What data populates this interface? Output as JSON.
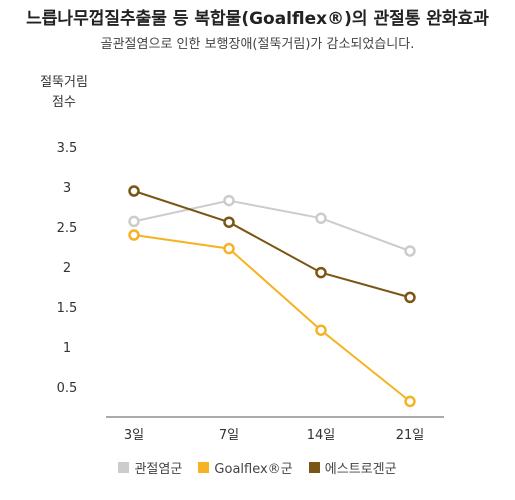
{
  "title": "느릅나무껍질추출물 등 복합물(Goalflex®)의 관절통 완화효과",
  "subtitle": "골관절염으로 인한 보행장애(절뚝거림)가 감소되었습니다.",
  "colors": {
    "관절염군": "#cccccc",
    "Goalflex®군": "#f5b324",
    "에스트로겐군": "#7a5514"
  },
  "chart_data": {
    "type": "line",
    "title": "느릅나무껍질추출물 등 복합물(Goalflex®)의 관절통 완화효과",
    "subtitle": "골관절염으로 인한 보행장애(절뚝거림)가 감소되었습니다.",
    "ylabel_lines": [
      "절뚝거림",
      "점수"
    ],
    "xlabel": "",
    "categories": [
      "3일",
      "7일",
      "14일",
      "21일"
    ],
    "yticks": [
      "0.5",
      "1",
      "1.5",
      "2",
      "2.5",
      "3",
      "3.5"
    ],
    "ylim": [
      0,
      3.5
    ],
    "grid": false,
    "legend_position": "bottom",
    "series": [
      {
        "name": "관절염군",
        "values": [
          2.57,
          2.83,
          2.61,
          2.2
        ]
      },
      {
        "name": "Goalflex®군",
        "values": [
          2.4,
          2.23,
          1.21,
          0.32
        ]
      },
      {
        "name": "에스트로겐군",
        "values": [
          2.95,
          2.56,
          1.93,
          1.62
        ]
      }
    ]
  }
}
